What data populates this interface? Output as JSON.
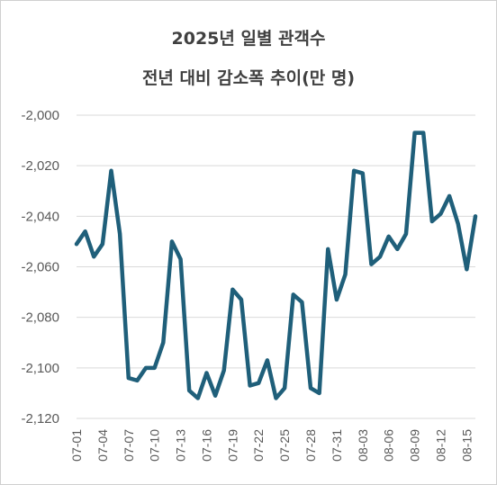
{
  "chart_data": {
    "type": "line",
    "title": "2025년 일별 관객수",
    "subtitle": "전년 대비 감소폭 추이(만 명)",
    "xlabel": "",
    "ylabel": "",
    "ylim": [
      -2120,
      -2000
    ],
    "yticks": [
      -2000,
      -2020,
      -2040,
      -2060,
      -2080,
      -2100,
      -2120
    ],
    "ytick_labels": [
      "-2,000",
      "-2,020",
      "-2,040",
      "-2,060",
      "-2,080",
      "-2,100",
      "-2,120"
    ],
    "x": [
      "07-01",
      "07-02",
      "07-03",
      "07-04",
      "07-05",
      "07-06",
      "07-07",
      "07-08",
      "07-09",
      "07-10",
      "07-11",
      "07-12",
      "07-13",
      "07-14",
      "07-15",
      "07-16",
      "07-17",
      "07-18",
      "07-19",
      "07-20",
      "07-21",
      "07-22",
      "07-23",
      "07-24",
      "07-25",
      "07-26",
      "07-27",
      "07-28",
      "07-29",
      "07-30",
      "07-31",
      "08-01",
      "08-02",
      "08-03",
      "08-04",
      "08-05",
      "08-06",
      "08-07",
      "08-08",
      "08-09",
      "08-10",
      "08-11",
      "08-12",
      "08-13",
      "08-14",
      "08-15",
      "08-16"
    ],
    "xtick_labels": [
      "07-01",
      "07-04",
      "07-07",
      "07-10",
      "07-13",
      "07-16",
      "07-19",
      "07-22",
      "07-25",
      "07-28",
      "07-31",
      "08-03",
      "08-06",
      "08-09",
      "08-12",
      "08-15"
    ],
    "series": [
      {
        "color": "#1f5f7a",
        "values": [
          -2051,
          -2046,
          -2056,
          -2051,
          -2022,
          -2047,
          -2104,
          -2105,
          -2100,
          -2100,
          -2090,
          -2050,
          -2057,
          -2109,
          -2112,
          -2102,
          -2111,
          -2101,
          -2069,
          -2073,
          -2107,
          -2106,
          -2097,
          -2112,
          -2108,
          -2071,
          -2074,
          -2108,
          -2110,
          -2053,
          -2073,
          -2063,
          -2022,
          -2023,
          -2059,
          -2056,
          -2048,
          -2053,
          -2047,
          -2007,
          -2007,
          -2042,
          -2039,
          -2032,
          -2043,
          -2061,
          -2040
        ]
      }
    ],
    "grid": true,
    "gridline_color": "#d9d9d9",
    "legend": "none"
  }
}
